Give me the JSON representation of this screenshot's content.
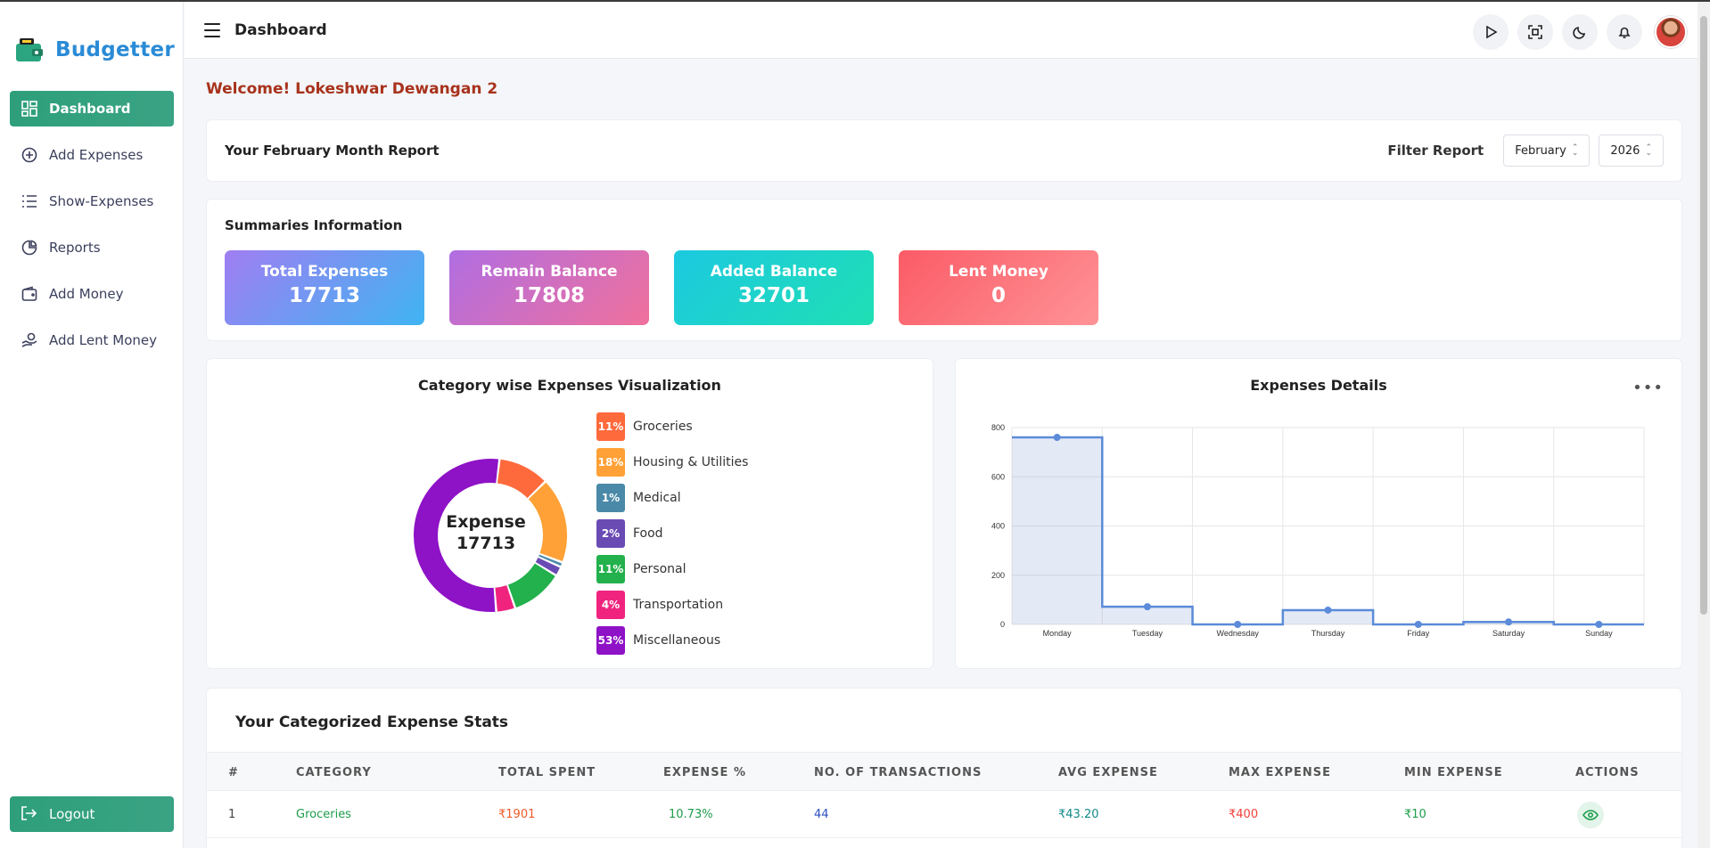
{
  "app": {
    "name": "Budgetter"
  },
  "sidebar": {
    "items": [
      {
        "label": "Dashboard",
        "icon": "dashboard-icon",
        "active": true
      },
      {
        "label": "Add Expenses",
        "icon": "plus-circle-icon",
        "active": false
      },
      {
        "label": "Show-Expenses",
        "icon": "list-icon",
        "active": false
      },
      {
        "label": "Reports",
        "icon": "pie-chart-icon",
        "active": false
      },
      {
        "label": "Add Money",
        "icon": "wallet-icon",
        "active": false
      },
      {
        "label": "Add Lent Money",
        "icon": "hand-money-icon",
        "active": false
      }
    ],
    "logout_label": "Logout"
  },
  "header": {
    "title": "Dashboard",
    "icons": [
      "play-icon",
      "fullscreen-icon",
      "moon-icon",
      "bell-icon",
      "avatar"
    ]
  },
  "welcome": "Welcome! Lokeshwar Dewangan 2",
  "report": {
    "title": "Your February Month Report",
    "filter_label": "Filter Report",
    "month": "February",
    "year": "2026"
  },
  "summary": {
    "title": "Summaries Information",
    "tiles": [
      {
        "label": "Total Expenses",
        "value": "17713",
        "gradient": [
          "#a07ef2",
          "#3fb4f2"
        ]
      },
      {
        "label": "Remain Balance",
        "value": "17808",
        "gradient": [
          "#b06ee2",
          "#f0709c"
        ]
      },
      {
        "label": "Added Balance",
        "value": "32701",
        "gradient": [
          "#1cc9e0",
          "#1fdfb4"
        ]
      },
      {
        "label": "Lent Money",
        "value": "0",
        "gradient": [
          "#fb5b66",
          "#fe9396"
        ]
      }
    ]
  },
  "donut": {
    "title": "Category wise Expenses Visualization",
    "center_label": "Expense",
    "center_value": "17713",
    "segments": [
      {
        "label": "Groceries",
        "pct": "11%",
        "value": 10.73,
        "color": "#ff6a3d"
      },
      {
        "label": "Housing & Utilities",
        "pct": "18%",
        "value": 18,
        "color": "#ffa136"
      },
      {
        "label": "Medical",
        "pct": "1%",
        "value": 1,
        "color": "#4a89a8"
      },
      {
        "label": "Food",
        "pct": "2%",
        "value": 2,
        "color": "#6a4bb4"
      },
      {
        "label": "Personal",
        "pct": "11%",
        "value": 11,
        "color": "#22b14c"
      },
      {
        "label": "Transportation",
        "pct": "4%",
        "value": 4,
        "color": "#f0247e"
      },
      {
        "label": "Miscellaneous",
        "pct": "53%",
        "value": 53,
        "color": "#8e12c6"
      }
    ]
  },
  "chart_data": {
    "type": "area",
    "title": "Expenses Details",
    "categories": [
      "Monday",
      "Tuesday",
      "Wednesday",
      "Thursday",
      "Friday",
      "Saturday",
      "Sunday"
    ],
    "series": [
      {
        "values": [
          760,
          72,
          0,
          58,
          0,
          10,
          0
        ]
      }
    ],
    "ylim": [
      0,
      800
    ],
    "yticks": [
      "0",
      "200",
      "400",
      "600",
      "800"
    ],
    "step": true,
    "grid": true
  },
  "table": {
    "title": "Your Categorized Expense Stats",
    "headers": [
      "#",
      "CATEGORY",
      "TOTAL SPENT",
      "EXPENSE %",
      "NO. OF TRANSACTIONS",
      "AVG EXPENSE",
      "MAX EXPENSE",
      "MIN EXPENSE",
      "ACTIONS"
    ],
    "rows": [
      {
        "num": "1",
        "category": "Groceries",
        "total": "₹1901",
        "pct": "10.73%",
        "count": "44",
        "avg": "₹43.20",
        "max": "₹400",
        "min": "₹10"
      }
    ]
  }
}
